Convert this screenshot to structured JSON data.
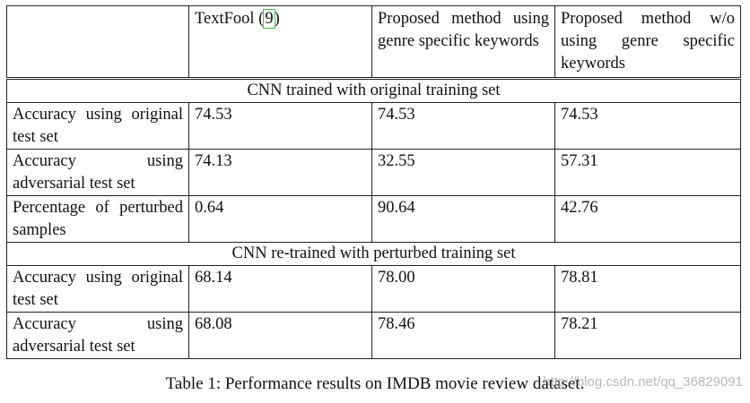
{
  "table": {
    "headers": [
      "",
      "TextFool ([9])",
      "Proposed method using genre specific keywords",
      "Proposed method w/o using genre specific keywords"
    ],
    "textfool_header": {
      "prefix": "TextFool (",
      "cite": "9",
      "suffix": ")"
    },
    "sections": [
      {
        "title": "CNN trained with original training set",
        "rows": [
          {
            "label": "Accuracy using original test set",
            "values": [
              "74.53",
              "74.53",
              "74.53"
            ]
          },
          {
            "label": "Accuracy using adversarial test set",
            "values": [
              "74.13",
              "32.55",
              "57.31"
            ]
          },
          {
            "label": "Percentage of perturbed samples",
            "values": [
              "0.64",
              "90.64",
              "42.76"
            ]
          }
        ]
      },
      {
        "title": "CNN re-trained with perturbed training set",
        "rows": [
          {
            "label": "Accuracy using original test set",
            "values": [
              "68.14",
              "78.00",
              "78.81"
            ]
          },
          {
            "label": "Accuracy using adversarial test set",
            "values": [
              "68.08",
              "78.46",
              "78.21"
            ]
          }
        ]
      }
    ]
  },
  "caption": "Table 1: Performance results on IMDB movie review dataset.",
  "watermark": "http://blog.csdn.net/qq_36829091",
  "colors": {
    "cite_box": "#3cc63c",
    "border": "#222222"
  }
}
